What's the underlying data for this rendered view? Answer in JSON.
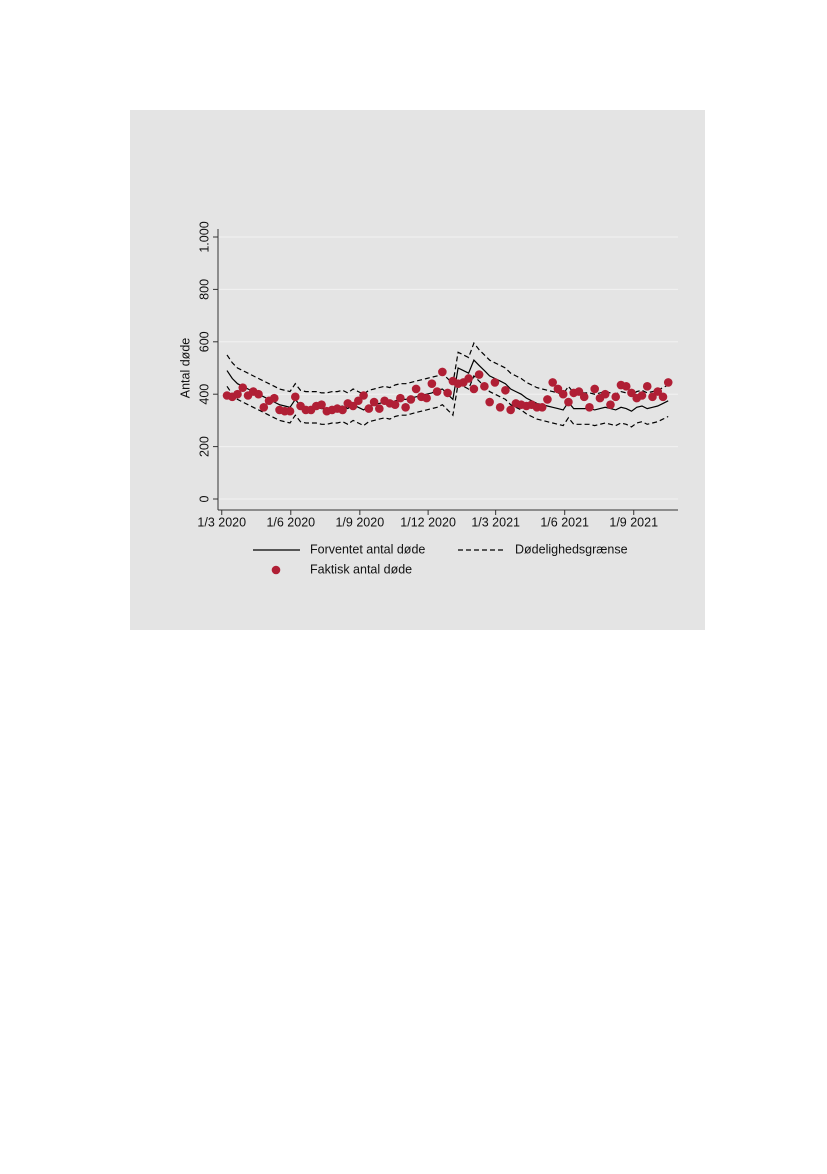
{
  "chart_data": {
    "type": "line",
    "ylabel": "Antal døde",
    "x": [
      "2020-03-08",
      "2020-03-15",
      "2020-03-22",
      "2020-03-29",
      "2020-04-05",
      "2020-04-12",
      "2020-04-19",
      "2020-04-26",
      "2020-05-03",
      "2020-05-10",
      "2020-05-17",
      "2020-05-24",
      "2020-05-31",
      "2020-06-07",
      "2020-06-14",
      "2020-06-21",
      "2020-06-28",
      "2020-07-05",
      "2020-07-12",
      "2020-07-19",
      "2020-07-26",
      "2020-08-02",
      "2020-08-09",
      "2020-08-16",
      "2020-08-23",
      "2020-08-30",
      "2020-09-06",
      "2020-09-13",
      "2020-09-20",
      "2020-09-27",
      "2020-10-04",
      "2020-10-11",
      "2020-10-18",
      "2020-10-25",
      "2020-11-01",
      "2020-11-08",
      "2020-11-15",
      "2020-11-22",
      "2020-11-29",
      "2020-12-06",
      "2020-12-13",
      "2020-12-20",
      "2020-12-27",
      "2021-01-03",
      "2021-01-10",
      "2021-01-17",
      "2021-01-24",
      "2021-01-31",
      "2021-02-07",
      "2021-02-14",
      "2021-02-21",
      "2021-02-28",
      "2021-03-07",
      "2021-03-14",
      "2021-03-21",
      "2021-03-28",
      "2021-04-04",
      "2021-04-11",
      "2021-04-18",
      "2021-04-25",
      "2021-05-02",
      "2021-05-09",
      "2021-05-16",
      "2021-05-23",
      "2021-05-30",
      "2021-06-06",
      "2021-06-13",
      "2021-06-20",
      "2021-06-27",
      "2021-07-04",
      "2021-07-11",
      "2021-07-18",
      "2021-07-25",
      "2021-08-01",
      "2021-08-08",
      "2021-08-15",
      "2021-08-22",
      "2021-08-29",
      "2021-09-05",
      "2021-09-12",
      "2021-09-19",
      "2021-09-26",
      "2021-10-03",
      "2021-10-10",
      "2021-10-17"
    ],
    "series": [
      {
        "name": "Forventet antal døde",
        "color": "#000000",
        "style": "solid",
        "values": [
          490,
          460,
          440,
          430,
          420,
          410,
          400,
          390,
          380,
          370,
          360,
          355,
          350,
          380,
          355,
          350,
          350,
          350,
          345,
          345,
          350,
          350,
          355,
          345,
          360,
          350,
          340,
          355,
          360,
          365,
          370,
          365,
          375,
          380,
          380,
          385,
          390,
          395,
          400,
          405,
          415,
          420,
          400,
          380,
          500,
          490,
          480,
          530,
          510,
          490,
          470,
          460,
          450,
          440,
          420,
          410,
          400,
          385,
          375,
          365,
          360,
          355,
          350,
          345,
          340,
          370,
          345,
          345,
          345,
          345,
          340,
          345,
          350,
          345,
          340,
          350,
          345,
          335,
          350,
          355,
          345,
          350,
          355,
          365,
          375
        ]
      },
      {
        "name": "Faktisk antal døde",
        "color": "#b01f35",
        "style": "dots",
        "values": [
          395,
          390,
          400,
          425,
          395,
          410,
          400,
          350,
          375,
          385,
          340,
          335,
          335,
          390,
          355,
          340,
          340,
          355,
          360,
          335,
          340,
          345,
          340,
          365,
          355,
          375,
          395,
          345,
          370,
          345,
          375,
          365,
          360,
          385,
          350,
          380,
          420,
          390,
          385,
          440,
          410,
          485,
          405,
          450,
          440,
          445,
          460,
          420,
          475,
          430,
          370,
          445,
          350,
          415,
          340,
          365,
          360,
          355,
          360,
          350,
          350,
          380,
          445,
          420,
          400,
          370,
          405,
          410,
          390,
          350,
          420,
          385,
          400,
          360,
          390,
          435,
          430,
          405,
          385,
          395,
          430,
          390,
          410,
          390,
          445
        ]
      }
    ],
    "band": {
      "name": "Dødelighedsgrænse",
      "color": "#000000",
      "style": "dashed",
      "upper": [
        550,
        520,
        500,
        490,
        480,
        470,
        460,
        450,
        440,
        430,
        420,
        415,
        410,
        440,
        415,
        410,
        410,
        410,
        405,
        405,
        410,
        410,
        415,
        405,
        420,
        410,
        400,
        415,
        420,
        425,
        430,
        425,
        435,
        440,
        440,
        445,
        450,
        455,
        460,
        465,
        470,
        480,
        460,
        440,
        560,
        550,
        540,
        595,
        570,
        550,
        530,
        520,
        510,
        500,
        480,
        470,
        460,
        445,
        435,
        425,
        420,
        415,
        410,
        405,
        400,
        430,
        405,
        405,
        405,
        405,
        400,
        405,
        410,
        405,
        400,
        410,
        405,
        395,
        410,
        415,
        405,
        410,
        415,
        425,
        435
      ],
      "lower": [
        430,
        400,
        380,
        370,
        360,
        350,
        340,
        330,
        320,
        310,
        300,
        295,
        290,
        320,
        295,
        290,
        290,
        290,
        285,
        285,
        290,
        290,
        295,
        285,
        300,
        290,
        280,
        295,
        300,
        305,
        310,
        305,
        315,
        320,
        320,
        325,
        330,
        335,
        340,
        345,
        350,
        360,
        340,
        320,
        440,
        430,
        420,
        470,
        450,
        430,
        410,
        400,
        390,
        380,
        360,
        350,
        340,
        325,
        315,
        305,
        300,
        295,
        290,
        285,
        280,
        310,
        285,
        285,
        285,
        285,
        280,
        285,
        290,
        285,
        280,
        290,
        285,
        275,
        290,
        295,
        285,
        290,
        295,
        305,
        315
      ]
    },
    "xlim": [
      "2020-02-25",
      "2021-10-30"
    ],
    "xticks": [
      {
        "value": "2020-03-01",
        "label": "1/3 2020"
      },
      {
        "value": "2020-06-01",
        "label": "1/6 2020"
      },
      {
        "value": "2020-09-01",
        "label": "1/9 2020"
      },
      {
        "value": "2020-12-01",
        "label": "1/12 2020"
      },
      {
        "value": "2021-03-01",
        "label": "1/3 2021"
      },
      {
        "value": "2021-06-01",
        "label": "1/6 2021"
      },
      {
        "value": "2021-09-01",
        "label": "1/9 2021"
      }
    ],
    "ylim": [
      0,
      1000
    ],
    "yticks": [
      0,
      200,
      400,
      600,
      800,
      {
        "value": 1000,
        "label": "1.000"
      }
    ],
    "grid": true,
    "legend": "bottom"
  }
}
